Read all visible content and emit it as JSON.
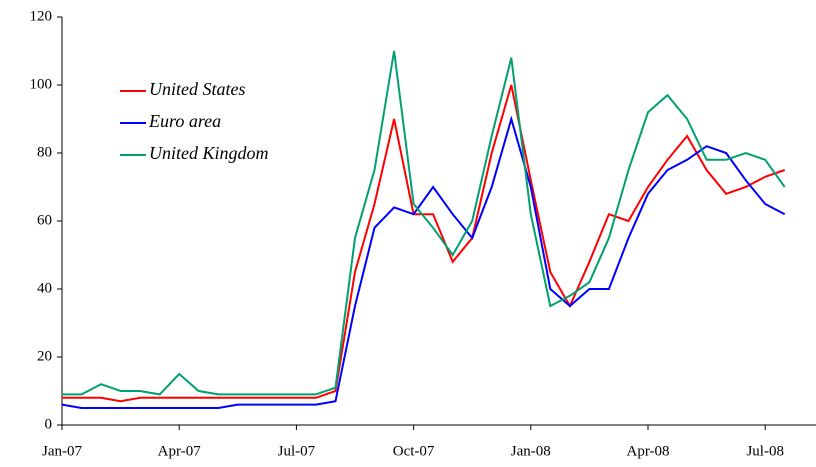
{
  "chart_data": {
    "type": "line",
    "x": [
      0,
      0.5,
      1,
      1.5,
      2,
      2.5,
      3,
      3.5,
      4,
      4.5,
      5,
      5.5,
      6,
      6.5,
      7,
      7.5,
      8,
      8.5,
      9,
      9.5,
      10,
      10.5,
      11,
      11.5,
      12,
      12.5,
      13,
      13.5,
      14,
      14.5,
      15,
      15.5,
      16,
      16.5,
      17,
      17.5,
      18,
      18.5
    ],
    "xlim": [
      0,
      19.3
    ],
    "xticks": [
      {
        "value": 0,
        "label": "Jan-07"
      },
      {
        "value": 3,
        "label": "Apr-07"
      },
      {
        "value": 6,
        "label": "Jul-07"
      },
      {
        "value": 9,
        "label": "Oct-07"
      },
      {
        "value": 12,
        "label": "Jan-08"
      },
      {
        "value": 15,
        "label": "Apr-08"
      },
      {
        "value": 18,
        "label": "Jul-08"
      }
    ],
    "ylim": [
      0,
      120
    ],
    "yticks": [
      0,
      20,
      40,
      60,
      80,
      100,
      120
    ],
    "legend": "upper left",
    "series": [
      {
        "name": "United States",
        "color": "#ff0000",
        "values": [
          8,
          8,
          8,
          7,
          8,
          8,
          8,
          8,
          8,
          8,
          8,
          8,
          8,
          8,
          10,
          45,
          65,
          90,
          62,
          62,
          48,
          55,
          80,
          100,
          72,
          45,
          35,
          48,
          62,
          60,
          70,
          78,
          85,
          75,
          68,
          70,
          73,
          75
        ]
      },
      {
        "name": "Euro area",
        "color": "#0000ff",
        "values": [
          6,
          5,
          5,
          5,
          5,
          5,
          5,
          5,
          5,
          6,
          6,
          6,
          6,
          6,
          7,
          35,
          58,
          64,
          62,
          70,
          62,
          55,
          70,
          90,
          70,
          40,
          35,
          40,
          40,
          55,
          68,
          75,
          78,
          82,
          80,
          72,
          65,
          62
        ]
      },
      {
        "name": "United Kingdom",
        "color": "#00a070",
        "values": [
          9,
          9,
          12,
          10,
          10,
          9,
          15,
          10,
          9,
          9,
          9,
          9,
          9,
          9,
          11,
          55,
          75,
          110,
          65,
          58,
          50,
          60,
          85,
          108,
          62,
          35,
          38,
          42,
          55,
          75,
          92,
          97,
          90,
          78,
          78,
          80,
          78,
          70
        ]
      }
    ]
  }
}
